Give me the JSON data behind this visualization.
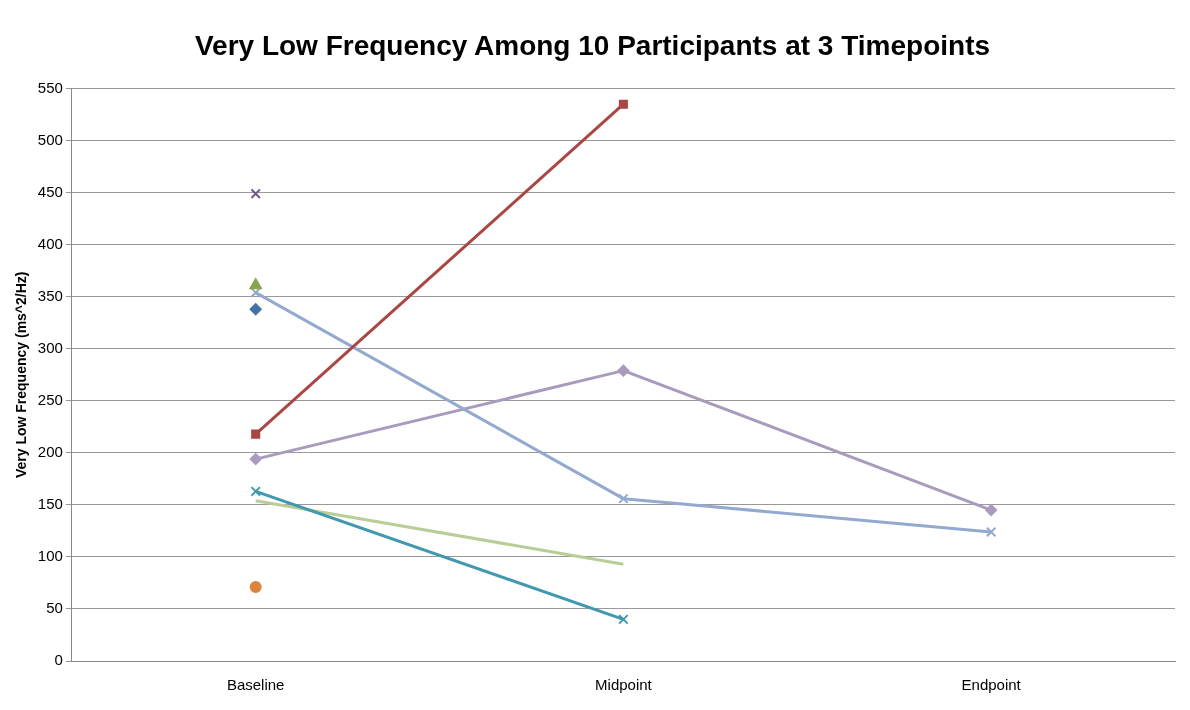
{
  "chart_data": {
    "type": "line",
    "title": "Very Low Frequency Among 10 Participants at 3 Timepoints",
    "ylabel": "Very Low Frequency (ms^2/Hz)",
    "categories": [
      "Baseline",
      "Midpoint",
      "Endpoint"
    ],
    "ylim": [
      0,
      550
    ],
    "yticks": [
      0,
      50,
      100,
      150,
      200,
      250,
      300,
      350,
      400,
      450,
      500,
      550
    ],
    "grid": "y",
    "legend": false,
    "series": [
      {
        "color": "#4572a7",
        "marker": "diamond",
        "values": [
          338,
          null,
          null
        ]
      },
      {
        "color": "#aa4643",
        "marker": "square",
        "values": [
          218,
          535,
          null
        ]
      },
      {
        "color": "#89a54e",
        "marker": "triangle",
        "values": [
          361,
          null,
          null
        ]
      },
      {
        "color": "#71588f",
        "marker": "cross",
        "values": [
          449,
          null,
          null
        ]
      },
      {
        "color": "#4198af",
        "marker": "cross",
        "values": [
          163,
          40,
          null
        ]
      },
      {
        "color": "#db843d",
        "marker": "circle",
        "values": [
          71,
          null,
          null
        ]
      },
      {
        "color": "#93a9cf",
        "marker": "cross",
        "values": [
          354,
          156,
          124
        ]
      },
      {
        "color": "#a99bbd",
        "marker": "diamond",
        "values": [
          194,
          279,
          145
        ]
      },
      {
        "color": "#b9cd96",
        "marker": "none",
        "values": [
          154,
          93,
          null
        ]
      }
    ]
  }
}
